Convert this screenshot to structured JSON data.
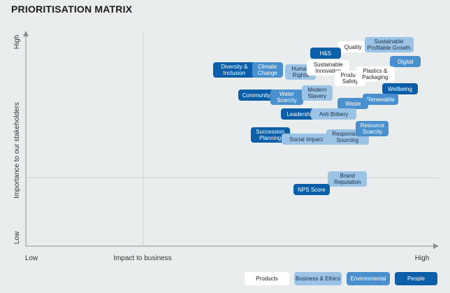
{
  "title": "PRIORITISATION MATRIX",
  "colors": {
    "products": "#ffffff",
    "business_ethics": "#9bc3e6",
    "environmental": "#4a90cf",
    "people": "#0a5fa8"
  },
  "chart_data": {
    "type": "scatter",
    "title": "PRIORITISATION MATRIX",
    "xlabel": "Impact to business",
    "ylabel": "Importance to our stakeholders",
    "x_tick_labels": [
      "Low",
      "High"
    ],
    "y_tick_labels": [
      "Low",
      "High"
    ],
    "xlim": [
      0,
      100
    ],
    "ylim": [
      0,
      100
    ],
    "quadrant_lines": true,
    "legend_placement": "bottom-right",
    "legend": [
      {
        "key": "products",
        "label": "Products"
      },
      {
        "key": "business_ethics",
        "label": "Business & Ethics"
      },
      {
        "key": "environmental",
        "label": "Environmental"
      },
      {
        "key": "people",
        "label": "People"
      }
    ],
    "points": [
      {
        "label": "Quality",
        "category": "products",
        "x": 76,
        "y": 95
      },
      {
        "label": "Sustainable\nProfitable Growth",
        "category": "business_ethics",
        "x": 89,
        "y": 96
      },
      {
        "label": "H&S",
        "category": "people",
        "x": 66,
        "y": 92
      },
      {
        "label": "Digital",
        "category": "environmental",
        "x": 95,
        "y": 88
      },
      {
        "label": "Diversity &\nInclusion",
        "category": "people",
        "x": 33,
        "y": 84
      },
      {
        "label": "Climate\nChange",
        "category": "environmental",
        "x": 45,
        "y": 84
      },
      {
        "label": "Human\nRights",
        "category": "business_ethics",
        "x": 57,
        "y": 83
      },
      {
        "label": "Sustainable\nInnovation",
        "category": "products",
        "x": 67,
        "y": 85
      },
      {
        "label": "Product\nSafety",
        "category": "products",
        "x": 75,
        "y": 80
      },
      {
        "label": "Plastics &\nPackaging",
        "category": "products",
        "x": 84,
        "y": 82
      },
      {
        "label": "Wellbeing",
        "category": "people",
        "x": 93,
        "y": 75
      },
      {
        "label": "Community",
        "category": "people",
        "x": 41,
        "y": 72
      },
      {
        "label": "Water\nScarcity",
        "category": "environmental",
        "x": 52,
        "y": 71
      },
      {
        "label": "Modern\nSlavery",
        "category": "business_ethics",
        "x": 63,
        "y": 73
      },
      {
        "label": "Renewable",
        "category": "environmental",
        "x": 86,
        "y": 70
      },
      {
        "label": "Waste",
        "category": "environmental",
        "x": 76,
        "y": 68
      },
      {
        "label": "Leadership",
        "category": "people",
        "x": 57,
        "y": 63
      },
      {
        "label": "Anti Bribery",
        "category": "business_ethics",
        "x": 69,
        "y": 63
      },
      {
        "label": "Succession\nPlanning",
        "category": "people",
        "x": 46,
        "y": 53
      },
      {
        "label": "Social Impact",
        "category": "business_ethics",
        "x": 59,
        "y": 51
      },
      {
        "label": "Responsible\nSourcing",
        "category": "business_ethics",
        "x": 74,
        "y": 52
      },
      {
        "label": "Resource\nScarcity",
        "category": "environmental",
        "x": 83,
        "y": 56
      },
      {
        "label": "Brand\nReputation",
        "category": "business_ethics",
        "x": 74,
        "y": 32
      },
      {
        "label": "NPS Score",
        "category": "people",
        "x": 61,
        "y": 27
      }
    ]
  }
}
